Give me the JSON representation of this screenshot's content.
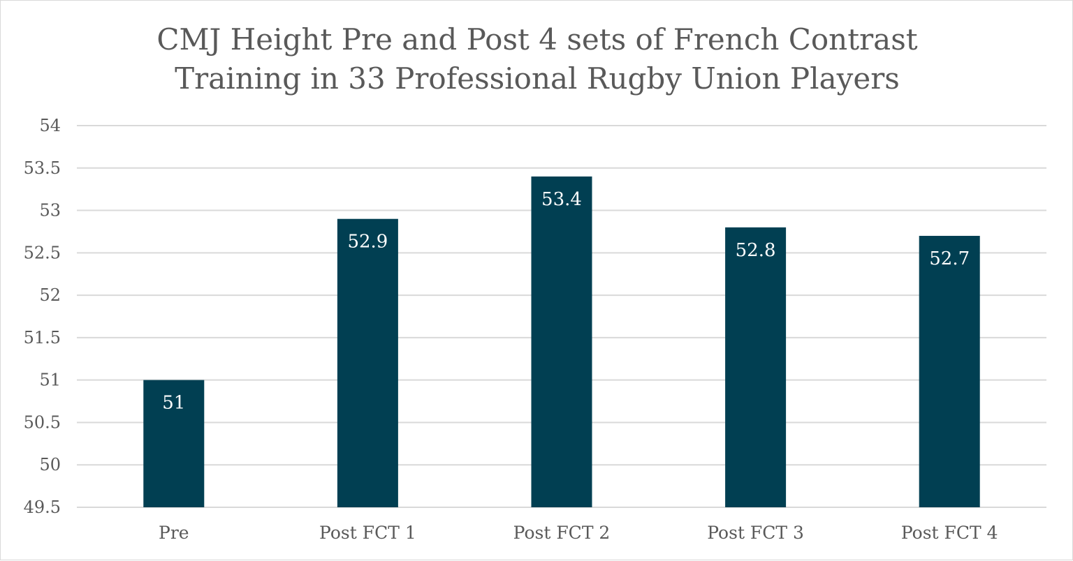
{
  "chart_data": {
    "type": "bar",
    "title_lines": [
      "CMJ Height Pre and Post 4 sets of French Contrast",
      "Training in 33 Professional Rugby Union Players"
    ],
    "categories": [
      "Pre",
      "Post FCT 1",
      "Post FCT 2",
      "Post FCT 3",
      "Post FCT 4"
    ],
    "values": [
      51,
      52.9,
      53.4,
      52.8,
      52.7
    ],
    "data_labels": [
      "51",
      "52.9",
      "53.4",
      "52.8",
      "52.7"
    ],
    "y_ticks": [
      "49.5",
      "50",
      "50.5",
      "51",
      "51.5",
      "52",
      "52.5",
      "53",
      "53.5",
      "54"
    ],
    "ylim": [
      49.5,
      54
    ],
    "grid": true,
    "legend": "none",
    "bar_color": "#013f52",
    "grid_color": "#d9d9d9"
  }
}
